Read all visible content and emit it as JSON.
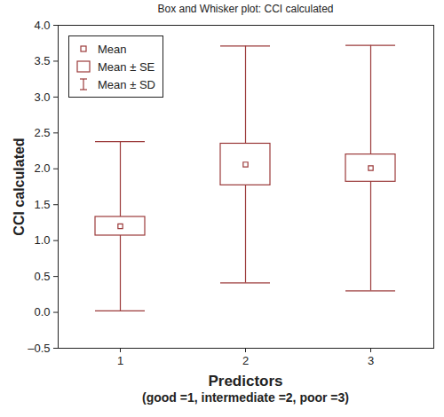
{
  "chart_data": {
    "type": "box",
    "title": "Box and Whisker plot: CCI calculated",
    "ylabel": "CCI calculated",
    "xlabel": "Predictors\n(good =1, intermediate =2, poor =3)",
    "categories": [
      "1",
      "2",
      "3"
    ],
    "values": [
      1.2,
      2.06,
      2.01
    ],
    "se_range": [
      [
        1.07,
        1.33
      ],
      [
        1.77,
        2.35
      ],
      [
        1.82,
        2.2
      ]
    ],
    "sd_range": [
      [
        0.02,
        2.38
      ],
      [
        0.41,
        3.71
      ],
      [
        0.3,
        3.72
      ]
    ],
    "legend_labels": [
      "Mean",
      "Mean ± SE",
      "Mean ± SD"
    ],
    "legend": "upper left",
    "color": "#9b3a3a",
    "grid": false,
    "ylim": [
      -0.5,
      4.0
    ],
    "yticks": [
      {
        "value": -0.5,
        "label": "–0.5"
      },
      {
        "value": 0,
        "label": "0.0"
      },
      0.5,
      {
        "value": 1,
        "label": "1.0"
      },
      1.5,
      {
        "value": 2,
        "label": "2.0"
      },
      2.5,
      {
        "value": 3,
        "label": "3.0"
      },
      3.5,
      {
        "value": 4,
        "label": "4.0"
      }
    ]
  }
}
